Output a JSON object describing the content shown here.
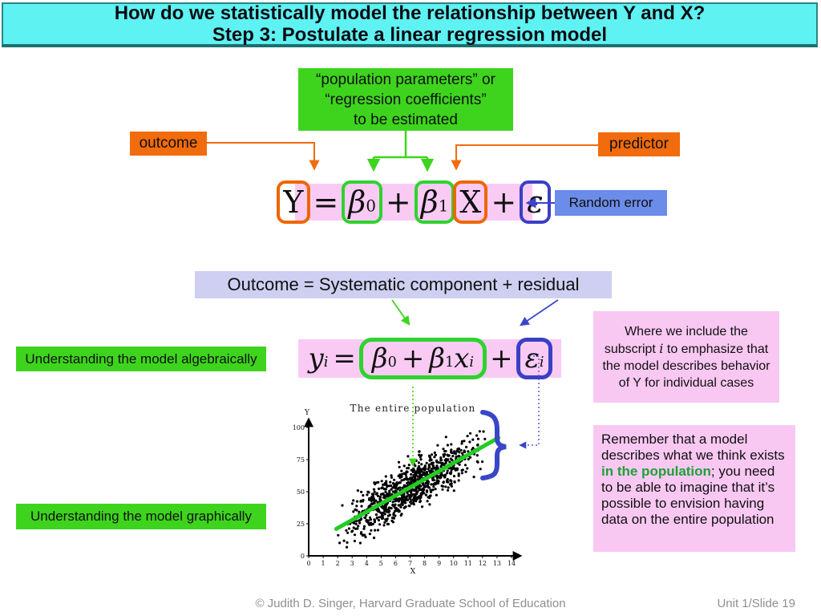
{
  "title": {
    "line1": "How do we statistically model the relationship between Y and X?",
    "line2": "Step 3: Postulate a linear regression model"
  },
  "callouts": {
    "population_parameters": [
      "“population parameters” or",
      "“regression coefficients”",
      "to be estimated"
    ],
    "outcome": "outcome",
    "predictor": "predictor",
    "random_error": "Random error",
    "decomposition": "Outcome = Systematic component + residual",
    "algebraic": "Understanding the model algebraically",
    "graphical": "Understanding the model graphically"
  },
  "notes": {
    "subscript": {
      "pre": "Where we include the subscript ",
      "italic": "i",
      "post": " to emphasize that the model describes behavior of Y for individual cases"
    },
    "population": {
      "pre": "Remember that a model describes what we think exists ",
      "highlight": "in the population",
      "post": "; you need to be able to imagine that it’s possible to envision having data on the entire population"
    }
  },
  "formula_population": {
    "y": "Y",
    "eq": "=",
    "beta0": "β",
    "sub0": "0",
    "plus1": "+",
    "beta1": "β",
    "sub1": "1",
    "x": "X",
    "plus2": "+",
    "epsilon": "ε"
  },
  "formula_individual": {
    "y": "y",
    "ysub": "i",
    "eq": "=",
    "beta0": "β",
    "sub0": "0",
    "plus1": "+",
    "beta1": "β",
    "sub1": "1",
    "x": "x",
    "xsub": "i",
    "plus2": "+",
    "epsilon": "ε",
    "esub": "i"
  },
  "footer": {
    "copyright": "© Judith D. Singer, Harvard Graduate School of Education",
    "slide": "Unit 1/Slide 19"
  },
  "colors": {
    "title_bg": "#5ef2f2",
    "title_border": "#1d6f6f",
    "green_box": "#3ed41e",
    "orange_box": "#f26b0c",
    "blue_box": "#6b8ce8",
    "lavender_box": "#cfcff2",
    "formula_pink": "#f9cbf4",
    "note_pink": "#f8c8f2",
    "outline_orange": "#ee6600",
    "outline_green": "#2ed32e",
    "outline_blue": "#3a3fc4",
    "arrow_blue": "#3946c8",
    "regression_green": "#22cc22",
    "highlight_green": "#1fa037"
  },
  "chart_data": {
    "type": "scatter",
    "title": "The entire population",
    "xlabel": "X",
    "ylabel": "Y",
    "xlim": [
      0,
      14
    ],
    "ylim": [
      0,
      100
    ],
    "xticks": [
      0,
      1,
      2,
      3,
      4,
      5,
      6,
      7,
      8,
      9,
      10,
      11,
      12,
      13,
      14
    ],
    "yticks": [
      0,
      25,
      50,
      75,
      100
    ],
    "grid": false,
    "n_points": 900,
    "x_range": [
      1.85,
      12.45
    ],
    "trend": {
      "intercept": 9,
      "slope": 6.34,
      "noise_sd": 9
    },
    "regression_line": {
      "x1": 1.9,
      "y1": 21,
      "x2": 13.1,
      "y2": 92,
      "color": "#22cc22"
    },
    "point_color": "#000000"
  }
}
